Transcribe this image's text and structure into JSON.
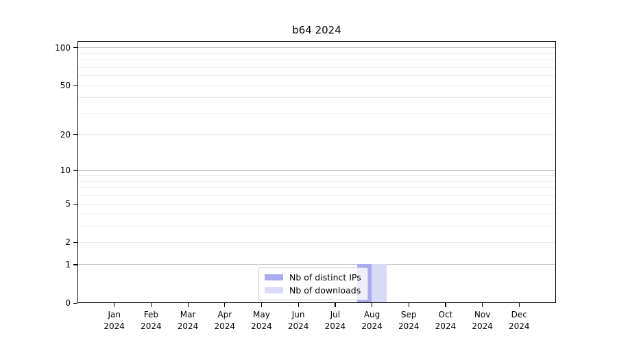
{
  "title": "b64 2024",
  "colors": {
    "distinct_ips_bar": "#aaaaee",
    "downloads_bar": "#d9d9f8",
    "grid_major": "#c3c3c3",
    "grid_minor": "#ececec",
    "axis": "#000000",
    "legend_border": "#cccccc",
    "background": "#ffffff"
  },
  "x_axis": {
    "months": [
      "Jan",
      "Feb",
      "Mar",
      "Apr",
      "May",
      "Jun",
      "Jul",
      "Aug",
      "Sep",
      "Oct",
      "Nov",
      "Dec"
    ],
    "year": "2024"
  },
  "y_axis": {
    "tick_labels": [
      "0",
      "1",
      "2",
      "5",
      "10",
      "20",
      "50",
      "100"
    ],
    "tick_values": [
      0,
      1,
      2,
      5,
      10,
      20,
      50,
      100
    ]
  },
  "legend": {
    "items": [
      {
        "label": "Nb of distinct IPs",
        "color": "#aaaaee"
      },
      {
        "label": "Nb of downloads",
        "color": "#d9d9f8"
      }
    ]
  },
  "chart_data": {
    "type": "bar",
    "title": "b64 2024",
    "categories": [
      "Jan 2024",
      "Feb 2024",
      "Mar 2024",
      "Apr 2024",
      "May 2024",
      "Jun 2024",
      "Jul 2024",
      "Aug 2024",
      "Sep 2024",
      "Oct 2024",
      "Nov 2024",
      "Dec 2024"
    ],
    "series": [
      {
        "name": "Nb of distinct IPs",
        "color": "#aaaaee",
        "values": [
          0,
          0,
          0,
          0,
          0,
          0,
          0,
          1,
          0,
          0,
          0,
          0
        ]
      },
      {
        "name": "Nb of downloads",
        "color": "#d9d9f8",
        "values": [
          0,
          0,
          0,
          0,
          0,
          0,
          0,
          1,
          0,
          0,
          0,
          0
        ]
      }
    ],
    "xlabel": "",
    "ylabel": "",
    "yscale": "log1p",
    "ylim": [
      0,
      113
    ],
    "y_ticks": [
      0,
      1,
      2,
      5,
      10,
      20,
      50,
      100
    ],
    "y_major_gridlines": [
      1,
      10,
      100
    ],
    "y_minor_gridlines": [
      2,
      3,
      4,
      5,
      6,
      7,
      8,
      9,
      20,
      30,
      40,
      50,
      60,
      70,
      80,
      90
    ],
    "grid": true,
    "legend_position": "lower center"
  }
}
